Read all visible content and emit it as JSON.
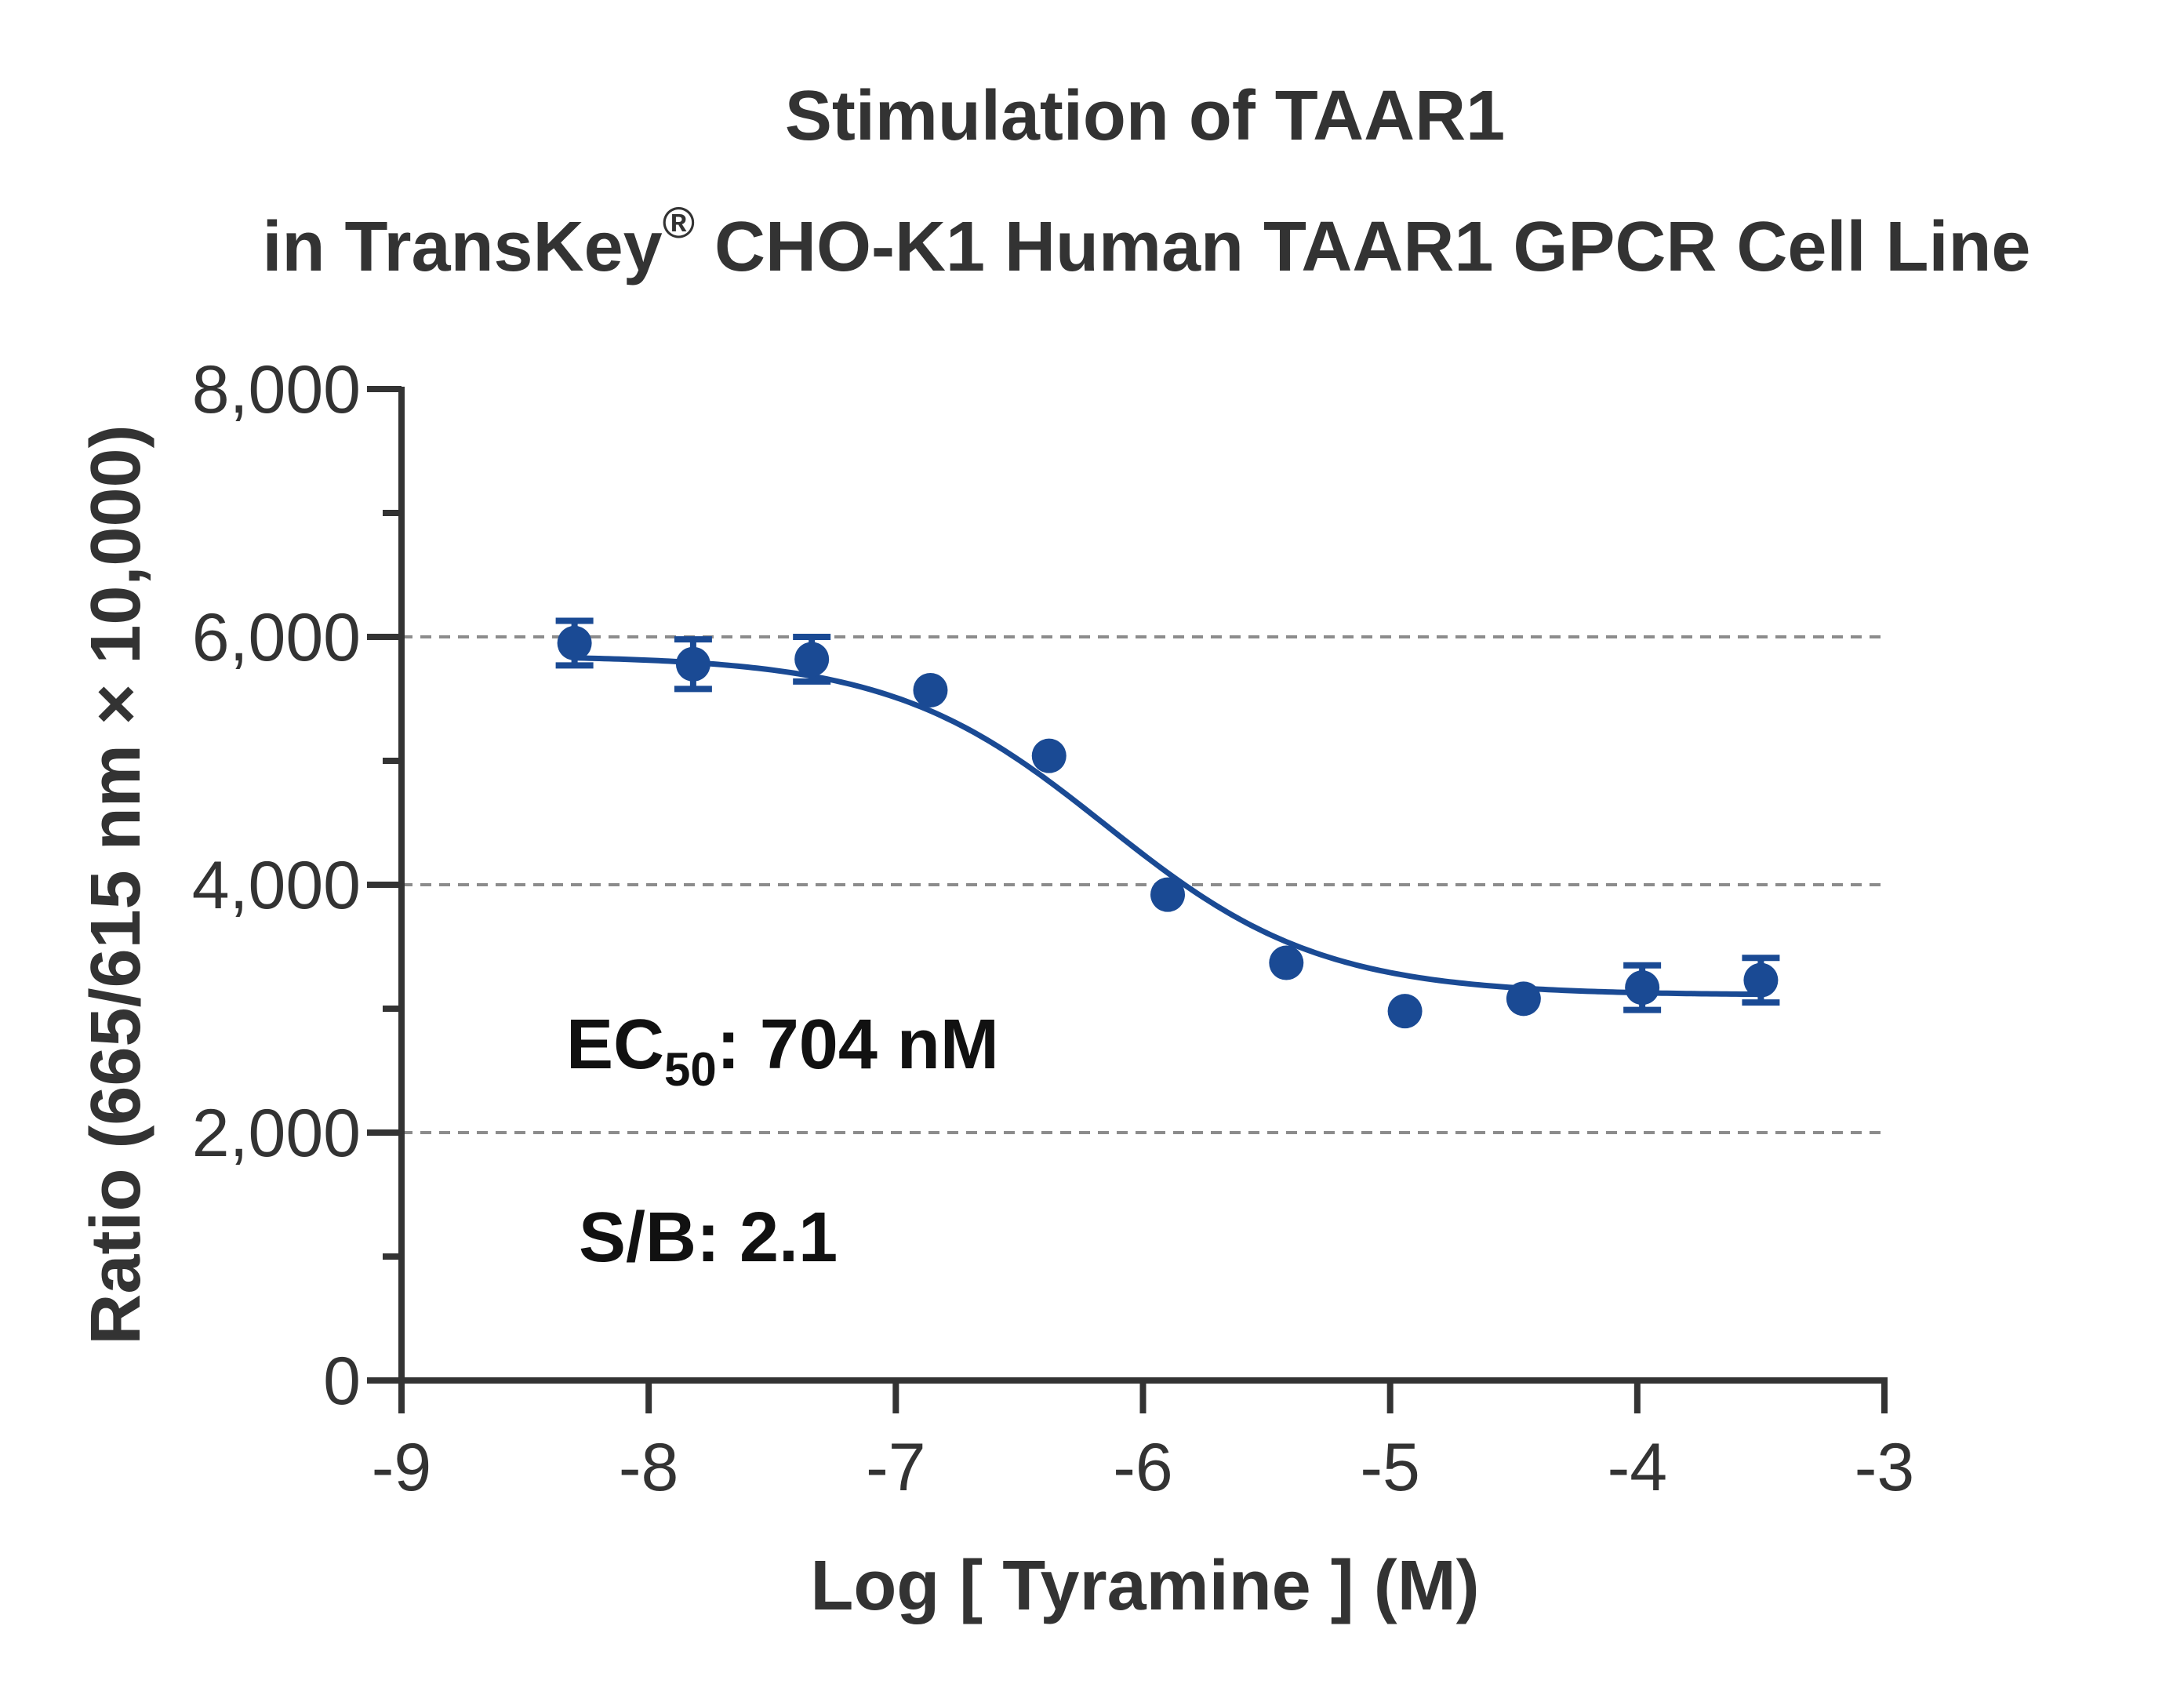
{
  "chart_data": {
    "type": "scatter",
    "title_line1": "Stimulation of  TAAR1",
    "title_line2_prefix": "in TransKey",
    "title_line2_sup": "®",
    "title_line2_suffix": " CHO-K1 Human TAAR1 GPCR Cell Line",
    "xlabel": "Log [ Tyramine ]  (M)",
    "ylabel": "Ratio (665/615 nm × 10,000)",
    "xlim": [
      -9,
      -3
    ],
    "ylim": [
      0,
      8000
    ],
    "x_ticks": [
      -9,
      -8,
      -7,
      -6,
      -5,
      -4,
      -3
    ],
    "x_tick_labels": [
      "-9",
      "-8",
      "-7",
      "-6",
      "-5",
      "-4",
      "-3"
    ],
    "y_major_ticks": [
      0,
      2000,
      4000,
      6000,
      8000
    ],
    "y_tick_labels": [
      "0",
      "2,000",
      "4,000",
      "6,000",
      "8,000"
    ],
    "y_minor_ticks": [
      1000,
      3000,
      5000,
      7000
    ],
    "gridlines_y": [
      2000,
      4000,
      6000
    ],
    "grid": "dashed horizontal at major y ticks",
    "colors": {
      "series": "#1a4a94",
      "axis": "#333333",
      "grid": "#8c8c8c"
    },
    "series": [
      {
        "x": [
          -8.3,
          -7.82,
          -7.34,
          -6.86,
          -6.38,
          -5.9,
          -5.42,
          -4.94,
          -4.46,
          -3.98,
          -3.5
        ],
        "y": [
          5950,
          5780,
          5820,
          5570,
          5040,
          3920,
          3370,
          2980,
          3080,
          3170,
          3230
        ],
        "error": [
          180,
          200,
          180,
          0,
          0,
          0,
          0,
          0,
          0,
          180,
          180
        ]
      }
    ],
    "fit_curve": {
      "model": "4PL",
      "top": 5850,
      "bottom": 3110,
      "log_ec50": -6.15,
      "hill_slope": 1.0,
      "x_range": [
        -8.3,
        -3.5
      ]
    },
    "annotations": {
      "ec50_prefix": "EC",
      "ec50_sub": "50",
      "ec50_suffix": ": 704 nM",
      "sb": "S/B: 2.1"
    }
  }
}
